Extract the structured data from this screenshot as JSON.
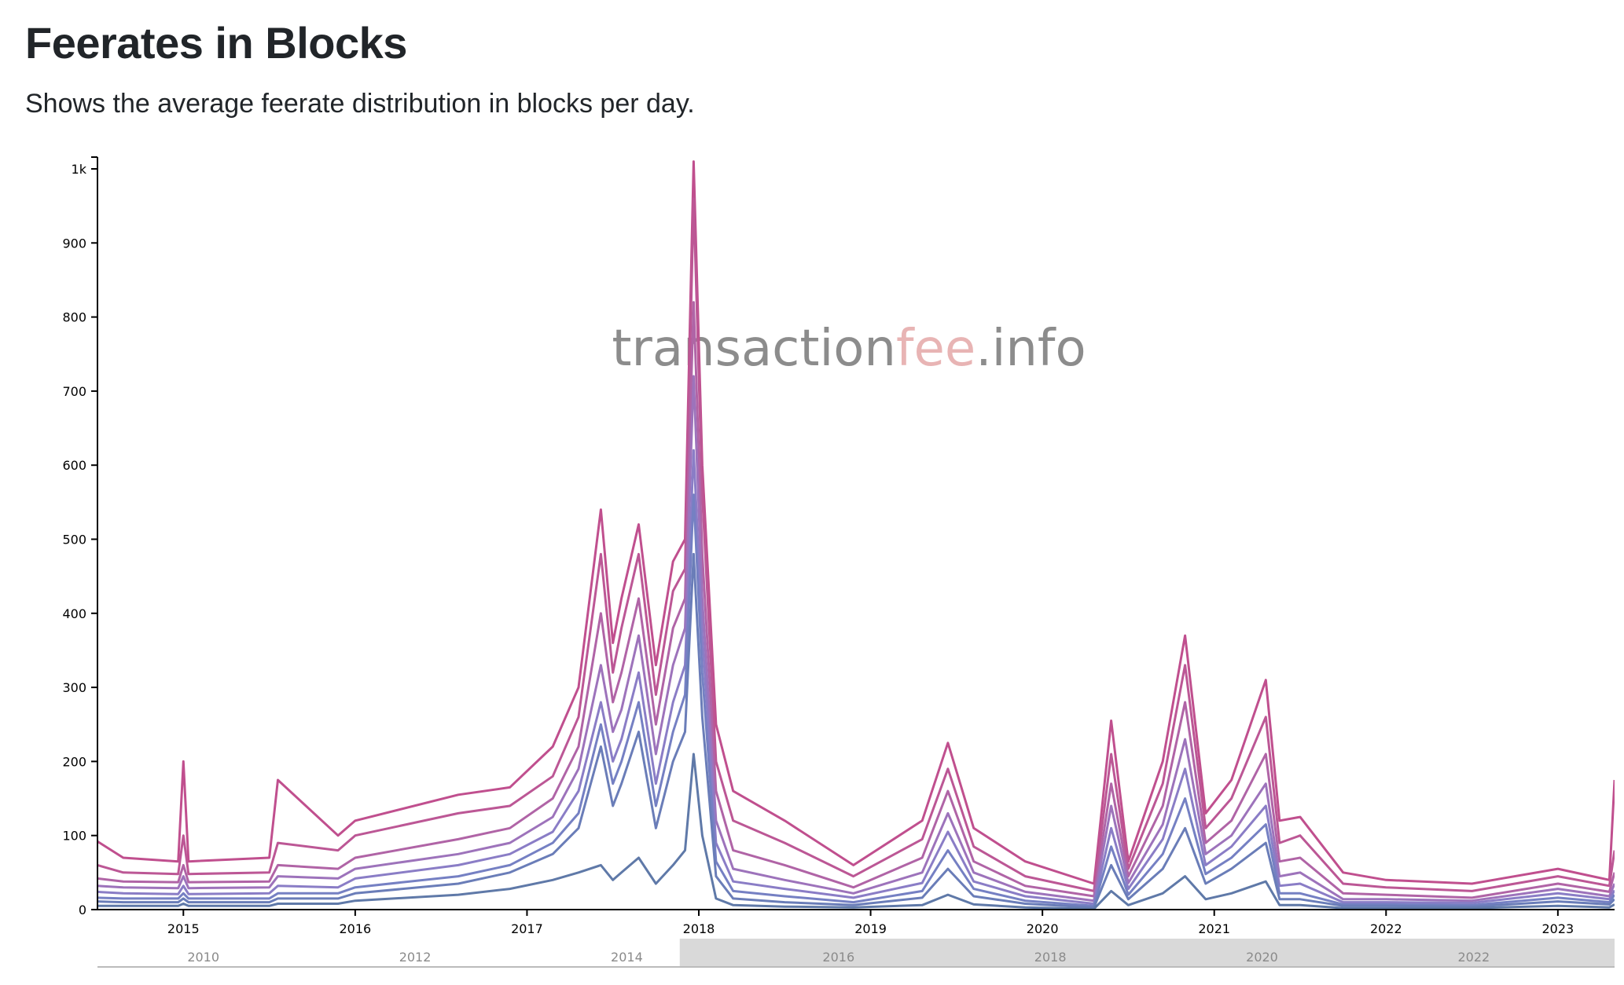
{
  "header": {
    "title": "Feerates in Blocks",
    "subtitle": "Shows the average feerate distribution in blocks per day."
  },
  "watermark": {
    "part1": "transaction",
    "part2": "fee",
    "part3": ".info",
    "color_main": "#8c8c8c",
    "color_accent": "#e8b4b4"
  },
  "chart_data": {
    "type": "line",
    "ylim": [
      0,
      1000
    ],
    "y_ticks": [
      {
        "value": 0,
        "label": "0"
      },
      {
        "value": 100,
        "label": "100"
      },
      {
        "value": 200,
        "label": "200"
      },
      {
        "value": 300,
        "label": "300"
      },
      {
        "value": 400,
        "label": "400"
      },
      {
        "value": 500,
        "label": "500"
      },
      {
        "value": 600,
        "label": "600"
      },
      {
        "value": 700,
        "label": "700"
      },
      {
        "value": 800,
        "label": "800"
      },
      {
        "value": 900,
        "label": "900"
      },
      {
        "value": 1000,
        "label": "1k"
      }
    ],
    "xlim": [
      2014.5,
      2023.33
    ],
    "x_ticks": [
      {
        "value": 2015,
        "label": "2015"
      },
      {
        "value": 2016,
        "label": "2016"
      },
      {
        "value": 2017,
        "label": "2017"
      },
      {
        "value": 2018,
        "label": "2018"
      },
      {
        "value": 2019,
        "label": "2019"
      },
      {
        "value": 2020,
        "label": "2020"
      },
      {
        "value": 2021,
        "label": "2021"
      },
      {
        "value": 2022,
        "label": "2022"
      },
      {
        "value": 2023,
        "label": "2023"
      }
    ],
    "brush": {
      "xlim": [
        2009,
        2023.33
      ],
      "selection": [
        2014.5,
        2023.33
      ],
      "ticks": [
        {
          "value": 2010,
          "label": "2010"
        },
        {
          "value": 2012,
          "label": "2012"
        },
        {
          "value": 2014,
          "label": "2014"
        },
        {
          "value": 2016,
          "label": "2016"
        },
        {
          "value": 2018,
          "label": "2018"
        },
        {
          "value": 2020,
          "label": "2020"
        },
        {
          "value": 2022,
          "label": "2022"
        }
      ]
    },
    "x": [
      2014.5,
      2014.65,
      2014.97,
      2015.0,
      2015.03,
      2015.5,
      2015.55,
      2015.9,
      2016.0,
      2016.6,
      2016.9,
      2017.15,
      2017.3,
      2017.43,
      2017.5,
      2017.55,
      2017.65,
      2017.75,
      2017.85,
      2017.92,
      2017.97,
      2018.02,
      2018.1,
      2018.2,
      2018.5,
      2018.9,
      2019.3,
      2019.45,
      2019.6,
      2019.9,
      2020.3,
      2020.4,
      2020.5,
      2020.7,
      2020.83,
      2020.95,
      2021.1,
      2021.3,
      2021.38,
      2021.5,
      2021.75,
      2022.0,
      2022.5,
      2023.0,
      2023.3,
      2023.33
    ],
    "series": [
      {
        "color": "#c04f8e",
        "values": [
          92,
          70,
          65,
          200,
          65,
          70,
          175,
          100,
          120,
          155,
          165,
          220,
          300,
          540,
          360,
          420,
          520,
          330,
          470,
          500,
          1010,
          600,
          250,
          160,
          120,
          60,
          120,
          225,
          110,
          65,
          35,
          255,
          65,
          200,
          370,
          130,
          175,
          310,
          120,
          125,
          50,
          40,
          35,
          55,
          40,
          175
        ]
      },
      {
        "color": "#bc5795",
        "values": [
          60,
          50,
          48,
          100,
          48,
          50,
          90,
          80,
          100,
          130,
          140,
          180,
          260,
          480,
          320,
          380,
          480,
          290,
          430,
          460,
          960,
          560,
          200,
          120,
          90,
          45,
          95,
          190,
          85,
          45,
          25,
          210,
          55,
          170,
          330,
          110,
          150,
          260,
          90,
          100,
          35,
          30,
          25,
          45,
          32,
          80
        ]
      },
      {
        "color": "#b064a6",
        "values": [
          42,
          38,
          37,
          60,
          37,
          38,
          60,
          55,
          70,
          95,
          110,
          150,
          220,
          400,
          280,
          320,
          420,
          250,
          380,
          420,
          820,
          480,
          160,
          80,
          60,
          30,
          70,
          160,
          65,
          32,
          18,
          170,
          45,
          140,
          280,
          90,
          120,
          210,
          65,
          70,
          22,
          20,
          16,
          35,
          24,
          50
        ]
      },
      {
        "color": "#9d73bb",
        "values": [
          32,
          30,
          29,
          45,
          29,
          30,
          45,
          42,
          55,
          75,
          90,
          125,
          190,
          330,
          240,
          270,
          370,
          210,
          330,
          380,
          720,
          420,
          120,
          55,
          40,
          22,
          50,
          130,
          50,
          24,
          12,
          140,
          36,
          115,
          230,
          75,
          100,
          170,
          45,
          50,
          14,
          14,
          12,
          28,
          18,
          35
        ]
      },
      {
        "color": "#8a7dc6",
        "values": [
          24,
          22,
          21,
          32,
          21,
          22,
          32,
          30,
          42,
          60,
          75,
          105,
          160,
          280,
          200,
          230,
          320,
          170,
          280,
          330,
          620,
          370,
          90,
          38,
          28,
          16,
          36,
          105,
          38,
          18,
          8,
          110,
          28,
          95,
          190,
          60,
          85,
          140,
          32,
          35,
          10,
          10,
          9,
          22,
          14,
          26
        ]
      },
      {
        "color": "#7580c3",
        "values": [
          16,
          15,
          15,
          22,
          15,
          15,
          22,
          22,
          30,
          45,
          60,
          90,
          130,
          250,
          170,
          200,
          280,
          140,
          240,
          290,
          560,
          320,
          65,
          25,
          18,
          10,
          25,
          80,
          28,
          12,
          5,
          85,
          20,
          75,
          150,
          48,
          70,
          115,
          22,
          22,
          7,
          7,
          6,
          16,
          10,
          20
        ]
      },
      {
        "color": "#6a7db8",
        "values": [
          11,
          10,
          10,
          15,
          10,
          10,
          15,
          15,
          22,
          35,
          50,
          75,
          110,
          220,
          140,
          170,
          240,
          110,
          200,
          240,
          480,
          260,
          45,
          15,
          10,
          6,
          16,
          55,
          18,
          8,
          3,
          60,
          14,
          55,
          110,
          35,
          55,
          90,
          14,
          14,
          5,
          5,
          4,
          11,
          7,
          14
        ]
      },
      {
        "color": "#5f79a8",
        "values": [
          5,
          5,
          5,
          8,
          5,
          5,
          8,
          8,
          12,
          20,
          28,
          40,
          50,
          60,
          40,
          50,
          70,
          35,
          60,
          80,
          210,
          100,
          15,
          6,
          4,
          3,
          6,
          20,
          7,
          3,
          1,
          25,
          6,
          22,
          45,
          14,
          22,
          38,
          6,
          6,
          2,
          2,
          2,
          5,
          3,
          7
        ]
      }
    ]
  }
}
